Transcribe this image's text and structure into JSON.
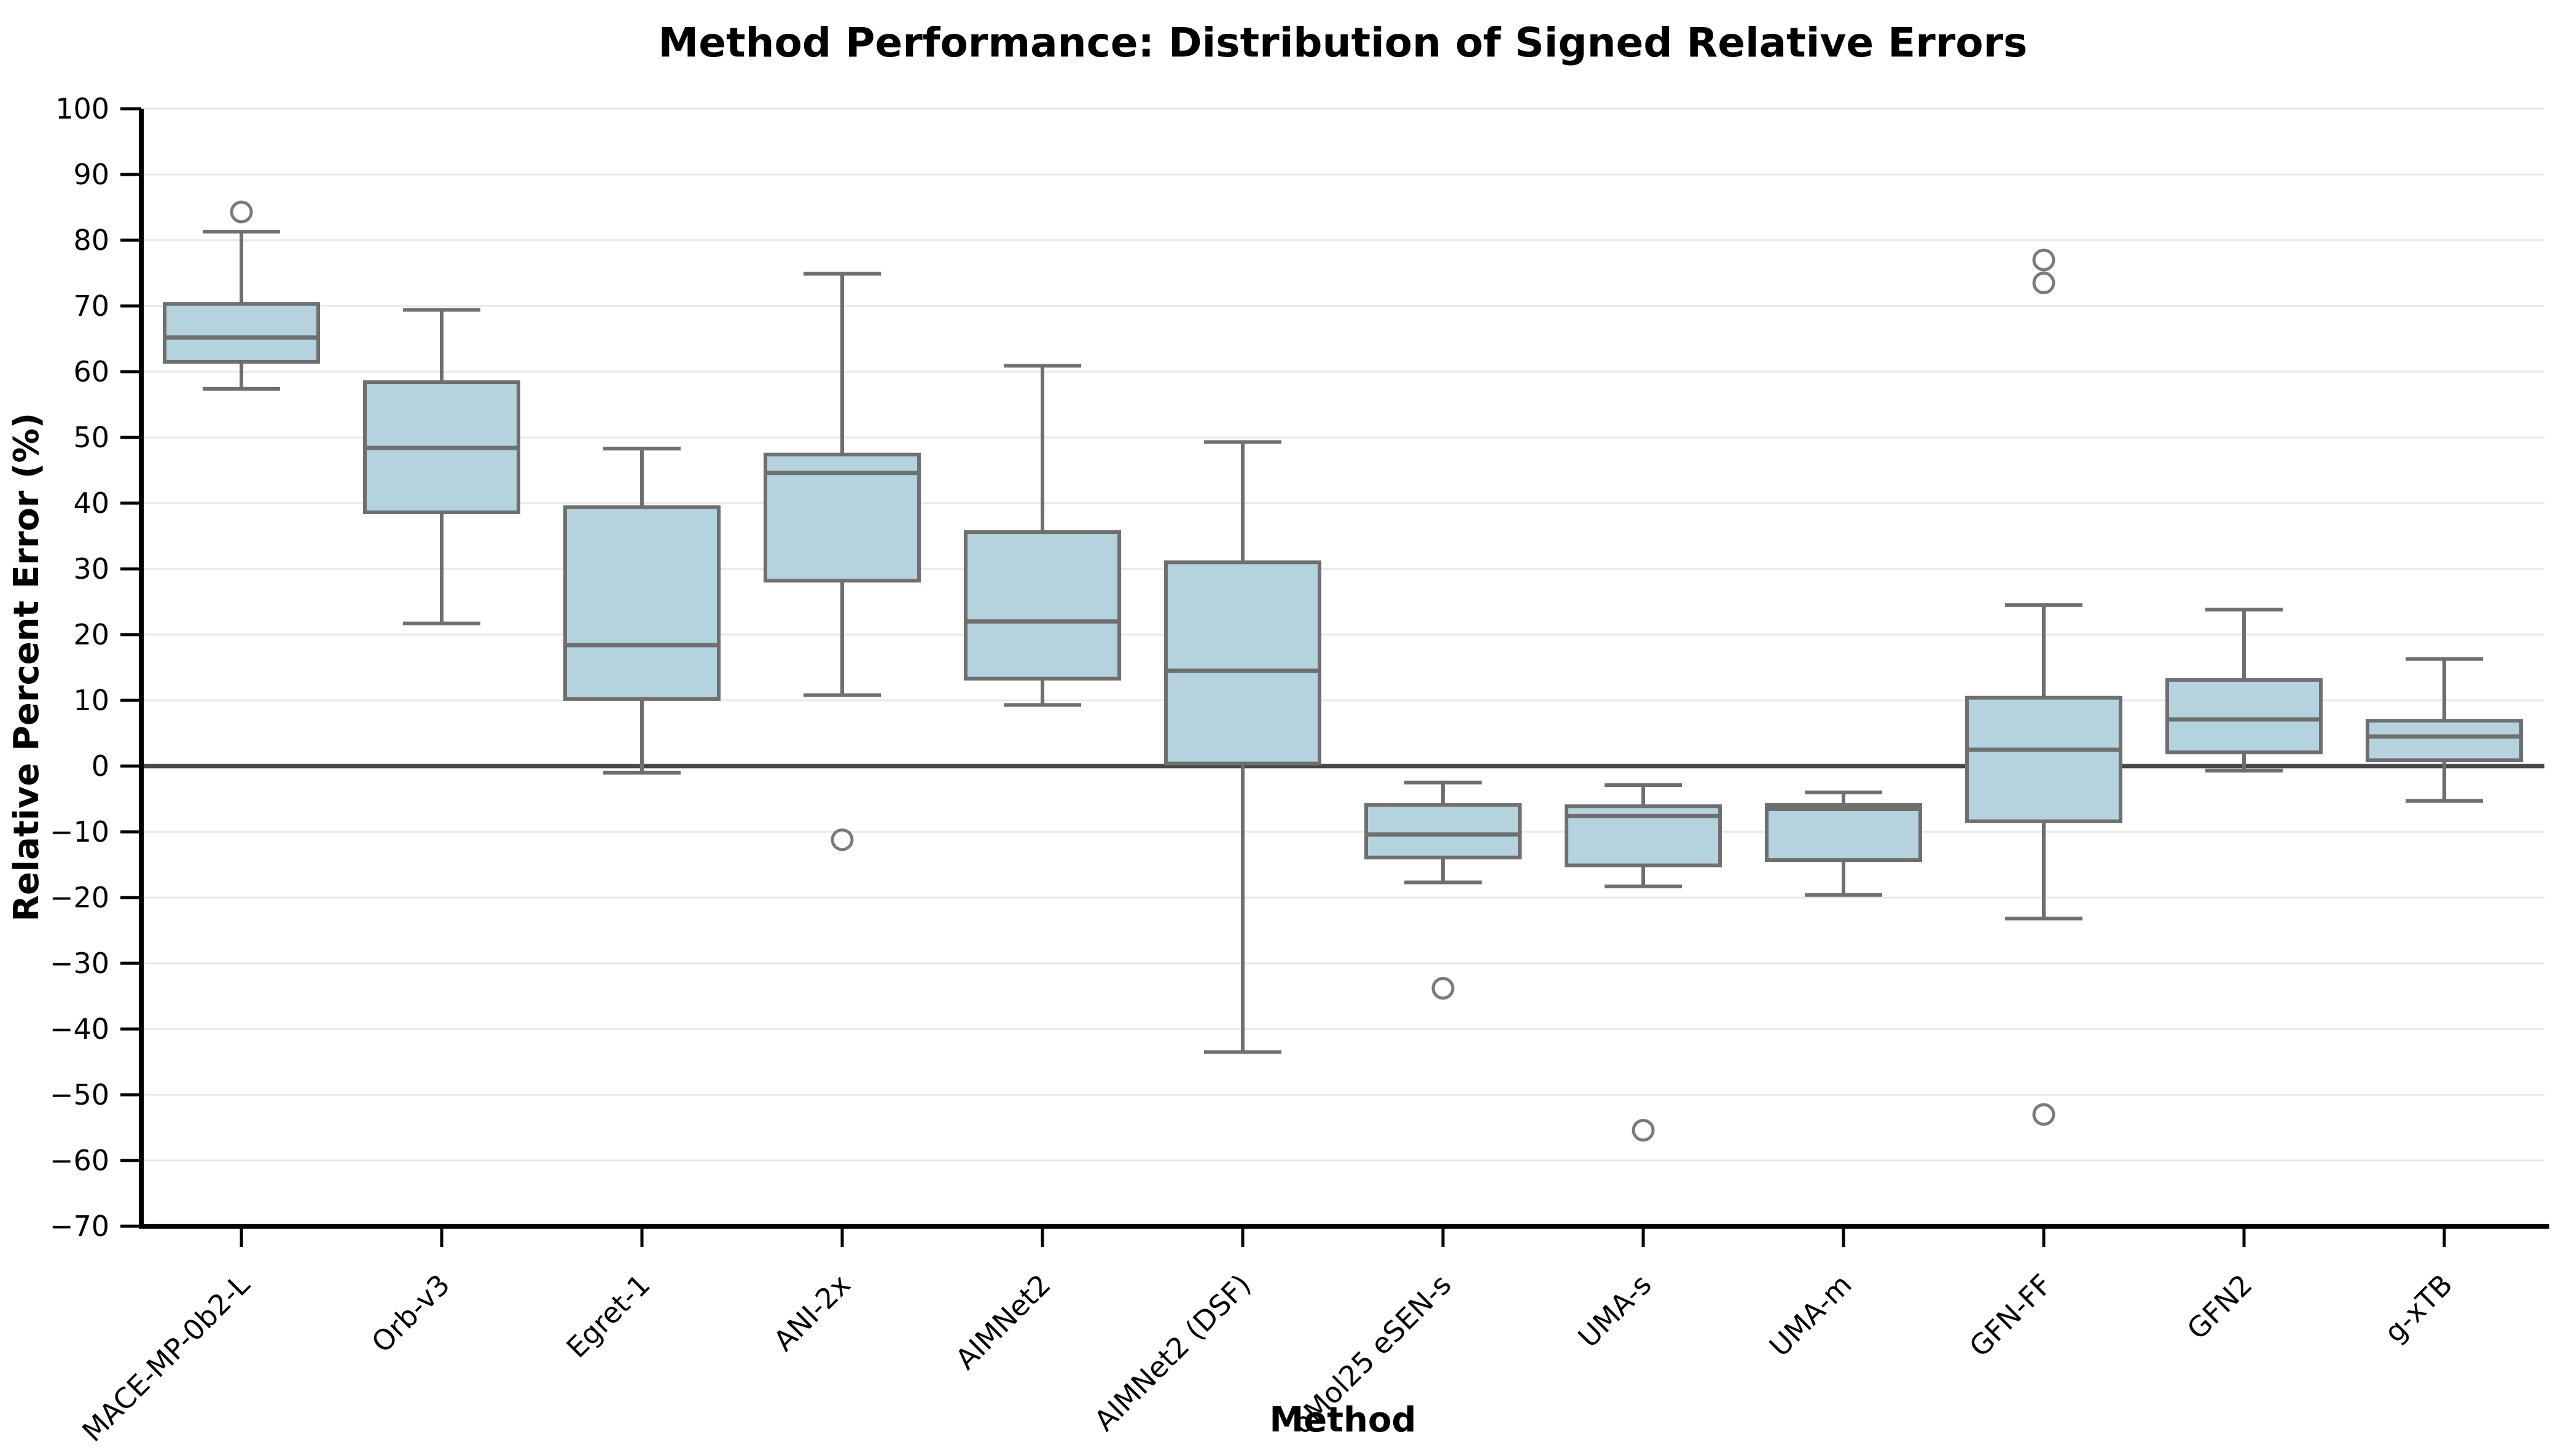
{
  "colors": {
    "background": "#ffffff",
    "box_fill": "#b4d3de",
    "box_edge": "#6f6f6f",
    "whisker": "#6f6f6f",
    "median": "#6f6f6f",
    "outlier": "#7a7a7a",
    "zero_line": "#474747",
    "gridline": "#e8e8e8",
    "spine": "#000000",
    "text": "#000000"
  },
  "chart_data": {
    "type": "boxplot",
    "title": "Method Performance: Distribution of Signed Relative Errors",
    "xlabel": "Method",
    "ylabel": "Relative Percent Error (%)",
    "ylim": [
      -70,
      100
    ],
    "ytick_step": 10,
    "yticks": [
      100,
      90,
      80,
      70,
      60,
      50,
      40,
      30,
      20,
      10,
      0,
      -10,
      -20,
      -30,
      -40,
      -50,
      -60,
      -70
    ],
    "grid": "horizontal",
    "zero_reference_line": 0,
    "xtick_rotation_deg": 45,
    "legend": "none",
    "categories": [
      "MACE-MP-0b2-L",
      "Orb-v3",
      "Egret-1",
      "ANI-2x",
      "AIMNet2",
      "AIMNet2 (DSF)",
      "oMol25 eSEN-s",
      "UMA-s",
      "UMA-m",
      "GFN-FF",
      "GFN2",
      "g-xTB"
    ],
    "series": [
      {
        "name": "MACE-MP-0b2-L",
        "whislo": 57.4,
        "q1": 61.5,
        "med": 65.2,
        "q3": 70.3,
        "whishi": 81.3,
        "outliers": [
          84.3
        ]
      },
      {
        "name": "Orb-v3",
        "whislo": 21.7,
        "q1": 38.6,
        "med": 48.4,
        "q3": 58.4,
        "whishi": 69.4,
        "outliers": []
      },
      {
        "name": "Egret-1",
        "whislo": -1.0,
        "q1": 10.2,
        "med": 18.4,
        "q3": 39.4,
        "whishi": 48.3,
        "outliers": []
      },
      {
        "name": "ANI-2x",
        "whislo": 10.8,
        "q1": 28.2,
        "med": 44.6,
        "q3": 47.4,
        "whishi": 74.9,
        "outliers": [
          -11.2
        ]
      },
      {
        "name": "AIMNet2",
        "whislo": 9.3,
        "q1": 13.3,
        "med": 22.0,
        "q3": 35.6,
        "whishi": 60.9,
        "outliers": []
      },
      {
        "name": "AIMNet2 (DSF)",
        "whislo": -43.5,
        "q1": 0.4,
        "med": 14.5,
        "q3": 31.0,
        "whishi": 49.3,
        "outliers": []
      },
      {
        "name": "oMol25 eSEN-s",
        "whislo": -17.7,
        "q1": -13.9,
        "med": -10.4,
        "q3": -5.9,
        "whishi": -2.5,
        "outliers": [
          -33.8
        ]
      },
      {
        "name": "UMA-s",
        "whislo": -18.3,
        "q1": -15.1,
        "med": -7.6,
        "q3": -6.1,
        "whishi": -2.9,
        "outliers": [
          -55.4
        ]
      },
      {
        "name": "UMA-m",
        "whislo": -19.6,
        "q1": -14.3,
        "med": -6.5,
        "q3": -5.9,
        "whishi": -4.0,
        "outliers": []
      },
      {
        "name": "GFN-FF",
        "whislo": -23.2,
        "q1": -8.4,
        "med": 2.5,
        "q3": 10.4,
        "whishi": 24.5,
        "outliers": [
          77.0,
          73.5,
          -53.0
        ]
      },
      {
        "name": "GFN2",
        "whislo": -0.7,
        "q1": 2.1,
        "med": 7.1,
        "q3": 13.1,
        "whishi": 23.8,
        "outliers": []
      },
      {
        "name": "g-xTB",
        "whislo": -5.3,
        "q1": 0.9,
        "med": 4.5,
        "q3": 6.9,
        "whishi": 16.3,
        "outliers": []
      }
    ]
  }
}
